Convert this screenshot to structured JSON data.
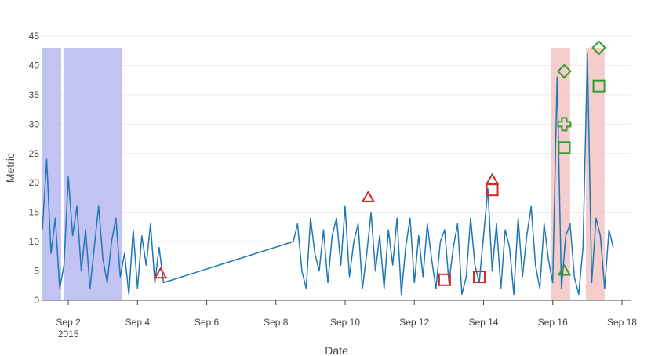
{
  "chart_data": {
    "type": "line",
    "title": "",
    "xlabel": "Date",
    "ylabel": "Metric",
    "ylim": [
      0,
      45
    ],
    "xlim": [
      "2015-09-01T06:00",
      "2015-09-18T06:00"
    ],
    "x_ticks": [
      {
        "date": "2015-09-02",
        "label": "Sep 2",
        "sublabel": "2015"
      },
      {
        "date": "2015-09-04",
        "label": "Sep 4",
        "sublabel": ""
      },
      {
        "date": "2015-09-06",
        "label": "Sep 6",
        "sublabel": ""
      },
      {
        "date": "2015-09-08",
        "label": "Sep 8",
        "sublabel": ""
      },
      {
        "date": "2015-09-10",
        "label": "Sep 10",
        "sublabel": ""
      },
      {
        "date": "2015-09-12",
        "label": "Sep 12",
        "sublabel": ""
      },
      {
        "date": "2015-09-14",
        "label": "Sep 14",
        "sublabel": ""
      },
      {
        "date": "2015-09-16",
        "label": "Sep 16",
        "sublabel": ""
      },
      {
        "date": "2015-09-18",
        "label": "Sep 18",
        "sublabel": ""
      }
    ],
    "y_ticks": [
      0,
      5,
      10,
      15,
      20,
      25,
      30,
      35,
      40,
      45
    ],
    "grid": "horizontal",
    "line_color": "#1f77b4",
    "shaded_regions": [
      {
        "start": "2015-09-01T06:00",
        "end": "2015-09-01T19:00",
        "ymax": 43,
        "color": "#b3b3f0"
      },
      {
        "start": "2015-09-01T21:00",
        "end": "2015-09-03T13:00",
        "ymax": 43,
        "color": "#b3b3f0"
      },
      {
        "start": "2015-09-15T23:00",
        "end": "2015-09-16T12:00",
        "ymax": 43,
        "color": "#f4c0c0"
      },
      {
        "start": "2015-09-16T23:00",
        "end": "2015-09-17T12:00",
        "ymax": 43,
        "color": "#f4c0c0"
      }
    ],
    "series": [
      {
        "x": [
          "2015-09-01T06:00",
          "2015-09-01T09:00",
          "2015-09-01T12:00",
          "2015-09-01T15:00",
          "2015-09-01T18:00",
          "2015-09-01T21:00",
          "2015-09-02T00:00",
          "2015-09-02T03:00",
          "2015-09-02T06:00",
          "2015-09-02T09:00",
          "2015-09-02T12:00",
          "2015-09-02T15:00",
          "2015-09-02T18:00",
          "2015-09-02T21:00",
          "2015-09-03T00:00",
          "2015-09-03T03:00",
          "2015-09-03T06:00",
          "2015-09-03T09:00",
          "2015-09-03T12:00",
          "2015-09-03T15:00",
          "2015-09-03T18:00",
          "2015-09-03T21:00",
          "2015-09-04T00:00",
          "2015-09-04T03:00",
          "2015-09-04T06:00",
          "2015-09-04T09:00",
          "2015-09-04T12:00",
          "2015-09-04T15:00",
          "2015-09-04T18:00",
          "2015-09-08T12:00",
          "2015-09-08T15:00",
          "2015-09-08T18:00",
          "2015-09-08T21:00",
          "2015-09-09T00:00",
          "2015-09-09T03:00",
          "2015-09-09T06:00",
          "2015-09-09T09:00",
          "2015-09-09T12:00",
          "2015-09-09T15:00",
          "2015-09-09T18:00",
          "2015-09-09T21:00",
          "2015-09-10T00:00",
          "2015-09-10T03:00",
          "2015-09-10T06:00",
          "2015-09-10T09:00",
          "2015-09-10T12:00",
          "2015-09-10T15:00",
          "2015-09-10T18:00",
          "2015-09-10T21:00",
          "2015-09-11T00:00",
          "2015-09-11T03:00",
          "2015-09-11T06:00",
          "2015-09-11T09:00",
          "2015-09-11T12:00",
          "2015-09-11T15:00",
          "2015-09-11T18:00",
          "2015-09-11T21:00",
          "2015-09-12T00:00",
          "2015-09-12T03:00",
          "2015-09-12T06:00",
          "2015-09-12T09:00",
          "2015-09-12T12:00",
          "2015-09-12T15:00",
          "2015-09-12T18:00",
          "2015-09-12T21:00",
          "2015-09-13T00:00",
          "2015-09-13T03:00",
          "2015-09-13T06:00",
          "2015-09-13T09:00",
          "2015-09-13T12:00",
          "2015-09-13T15:00",
          "2015-09-13T18:00",
          "2015-09-13T21:00",
          "2015-09-14T00:00",
          "2015-09-14T03:00",
          "2015-09-14T06:00",
          "2015-09-14T09:00",
          "2015-09-14T12:00",
          "2015-09-14T15:00",
          "2015-09-14T18:00",
          "2015-09-14T21:00",
          "2015-09-15T00:00",
          "2015-09-15T03:00",
          "2015-09-15T06:00",
          "2015-09-15T09:00",
          "2015-09-15T12:00",
          "2015-09-15T15:00",
          "2015-09-15T18:00",
          "2015-09-15T21:00",
          "2015-09-16T00:00",
          "2015-09-16T03:00",
          "2015-09-16T06:00",
          "2015-09-16T09:00",
          "2015-09-16T12:00",
          "2015-09-16T15:00",
          "2015-09-16T18:00",
          "2015-09-16T21:00",
          "2015-09-17T00:00",
          "2015-09-17T03:00",
          "2015-09-17T06:00",
          "2015-09-17T09:00",
          "2015-09-17T12:00",
          "2015-09-17T15:00",
          "2015-09-17T18:00"
        ],
        "values": [
          12,
          24,
          8,
          14,
          2,
          6,
          21,
          11,
          16,
          5,
          12,
          2,
          9,
          16,
          7,
          3,
          10,
          14,
          4,
          8,
          1,
          12,
          2,
          11,
          6,
          13,
          3,
          9,
          3,
          10,
          13,
          5,
          2,
          14,
          8,
          5,
          12,
          3,
          11,
          14,
          6,
          16,
          4,
          10,
          13,
          2,
          8,
          15,
          5,
          11,
          2,
          12,
          6,
          14,
          1,
          9,
          14,
          3,
          11,
          4,
          13,
          7,
          2,
          10,
          12,
          3,
          9,
          13,
          1,
          4,
          14,
          6,
          3,
          11,
          19,
          5,
          13,
          2,
          12,
          9,
          1,
          14,
          4,
          11,
          16,
          6,
          2,
          13,
          7,
          3,
          38,
          2,
          11,
          13,
          4,
          1,
          9,
          42,
          3,
          14,
          11,
          2,
          12,
          9
        ]
      }
    ],
    "markers": [
      {
        "x": "2015-09-04T16:00",
        "y": 4.5,
        "symbol": "triangle",
        "color": "#d62728"
      },
      {
        "x": "2015-09-10T16:00",
        "y": 17.5,
        "symbol": "triangle",
        "color": "#d62728"
      },
      {
        "x": "2015-09-14T06:00",
        "y": 20.5,
        "symbol": "triangle",
        "color": "#d62728"
      },
      {
        "x": "2015-09-14T06:00",
        "y": 18.8,
        "symbol": "square",
        "color": "#d62728"
      },
      {
        "x": "2015-09-12T21:00",
        "y": 3.5,
        "symbol": "square",
        "color": "#d62728"
      },
      {
        "x": "2015-09-13T21:00",
        "y": 4.0,
        "symbol": "square",
        "color": "#d62728"
      },
      {
        "x": "2015-09-16T08:00",
        "y": 5.0,
        "symbol": "triangle",
        "color": "#2ca02c"
      },
      {
        "x": "2015-09-16T08:00",
        "y": 39.0,
        "symbol": "diamond",
        "color": "#2ca02c"
      },
      {
        "x": "2015-09-16T08:00",
        "y": 30.0,
        "symbol": "cross",
        "color": "#2ca02c"
      },
      {
        "x": "2015-09-16T08:00",
        "y": 26.0,
        "symbol": "square",
        "color": "#2ca02c"
      },
      {
        "x": "2015-09-17T08:00",
        "y": 43.0,
        "symbol": "diamond",
        "color": "#2ca02c"
      },
      {
        "x": "2015-09-17T08:00",
        "y": 36.5,
        "symbol": "square",
        "color": "#2ca02c"
      }
    ]
  }
}
